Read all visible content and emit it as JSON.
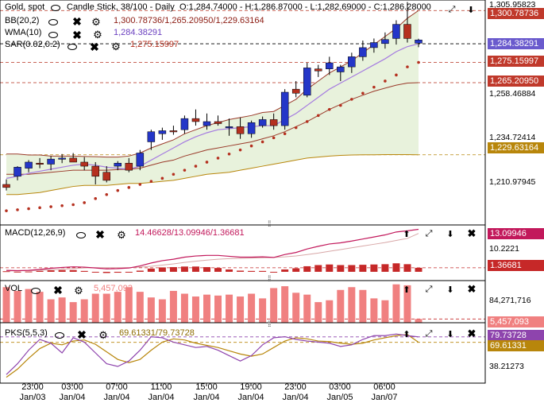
{
  "header": {
    "symbol": "Gold, spot",
    "chart_type": "Candle Stick, 38/100 - Daily",
    "ohlc": "O:1,284.74000 - H:1,286.87000 - L:1,282.69000 - C:1,286.28000"
  },
  "indicators": {
    "bb": {
      "name": "BB(20,2)",
      "values": "1,300.78736/1,265.20950/1,229.63164"
    },
    "wma": {
      "name": "WMA(10)",
      "value": "1,284.38291"
    },
    "sar": {
      "name": "SAR(0.02,0.2)",
      "value": "1,275.15997"
    },
    "macd": {
      "name": "MACD(12,26,9)",
      "values": "14.46628/13.09946/1.36681"
    },
    "vol": {
      "name": "VOL",
      "value": "5,457,093"
    },
    "pks": {
      "name": "PKS(5,5,3)",
      "values": "69.61331/79.73728"
    }
  },
  "price_axis": {
    "top": "1,305.95823",
    "ticks": [
      "1,258.46884",
      "1,234.72414",
      "1,210.97945"
    ],
    "tags": [
      {
        "text": "1,300.78736",
        "bg": "#c0392b",
        "fg": "#ffffff"
      },
      {
        "text": "1,284.38291",
        "bg": "#6a5acd",
        "fg": "#ffffff"
      },
      {
        "text": "1,275.15997",
        "bg": "#c0392b",
        "fg": "#ffffff"
      },
      {
        "text": "1,265.20950",
        "bg": "#c0392b",
        "fg": "#ffffff"
      },
      {
        "text": "1,229.63164",
        "bg": "#b8860b",
        "fg": "#ffffff"
      }
    ]
  },
  "macd_axis": {
    "tick": "10.2221",
    "tags": [
      {
        "text": "13.09946",
        "bg": "#c2185b",
        "fg": "#ffffff"
      },
      {
        "text": "1.36681",
        "bg": "#c62828",
        "fg": "#ffffff"
      }
    ]
  },
  "vol_axis": {
    "tick": "84,271,716",
    "tags": [
      {
        "text": "5,457,093",
        "bg": "#f08080",
        "fg": "#ffffff"
      }
    ]
  },
  "pks_axis": {
    "tick": "38.21273",
    "tags": [
      {
        "text": "79.73728",
        "bg": "#8e44ad",
        "fg": "#ffffff"
      },
      {
        "text": "69.61331",
        "bg": "#b8860b",
        "fg": "#ffffff"
      }
    ]
  },
  "time_axis": [
    {
      "time": "23:00",
      "date": "Jan/03"
    },
    {
      "time": "03:00",
      "date": "Jan/04"
    },
    {
      "time": "07:00",
      "date": "Jan/04"
    },
    {
      "time": "11:00",
      "date": "Jan/04"
    },
    {
      "time": "15:00",
      "date": "Jan/04"
    },
    {
      "time": "19:00",
      "date": "Jan/04"
    },
    {
      "time": "23:00",
      "date": "Jan/04"
    },
    {
      "time": "03:00",
      "date": "Jan/05"
    },
    {
      "time": "06:00",
      "date": "Jan/07"
    }
  ],
  "colors": {
    "bull": "#2436c8",
    "bear": "#b5301f",
    "bb_band": "#9a3a2a",
    "bb_fill": "#e8f2dc",
    "wma": "#a57be0",
    "sar": "#b5301f",
    "macd": "#c2185b",
    "signal": "#d8a7a7",
    "vol": "#f08080",
    "pks_k": "#8e44ad",
    "pks_d": "#b8860b"
  },
  "chart_data": {
    "type": "candlestick",
    "title": "Gold, spot",
    "y_range": [
      1195,
      1306
    ],
    "candles": [
      [
        1215.0,
        1217.5,
        1212.0,
        1213.5
      ],
      [
        1219.0,
        1224.0,
        1217.0,
        1223.5
      ],
      [
        1223.0,
        1227.0,
        1221.0,
        1226.0
      ],
      [
        1225.5,
        1228.0,
        1223.0,
        1225.0
      ],
      [
        1225.0,
        1229.0,
        1222.0,
        1227.5
      ],
      [
        1227.5,
        1230.0,
        1225.5,
        1228.0
      ],
      [
        1228.0,
        1230.5,
        1226.0,
        1226.0
      ],
      [
        1226.0,
        1228.5,
        1222.0,
        1224.0
      ],
      [
        1224.0,
        1226.0,
        1215.0,
        1219.0
      ],
      [
        1221.0,
        1224.0,
        1216.0,
        1217.0
      ],
      [
        1224.0,
        1226.5,
        1222.0,
        1225.5
      ],
      [
        1225.5,
        1228.0,
        1221.0,
        1222.0
      ],
      [
        1224.0,
        1232.0,
        1222.0,
        1230.5
      ],
      [
        1236.0,
        1242.0,
        1232.0,
        1241.0
      ],
      [
        1240.0,
        1243.0,
        1237.0,
        1241.5
      ],
      [
        1241.5,
        1244.0,
        1239.5,
        1241.0
      ],
      [
        1242.0,
        1249.0,
        1240.0,
        1247.5
      ],
      [
        1247.5,
        1252.0,
        1244.0,
        1246.0
      ],
      [
        1244.0,
        1250.0,
        1242.0,
        1246.0
      ],
      [
        1246.0,
        1249.0,
        1244.0,
        1245.0
      ],
      [
        1243.0,
        1247.5,
        1239.0,
        1243.5
      ],
      [
        1243.5,
        1248.0,
        1237.5,
        1240.0
      ],
      [
        1240.0,
        1246.5,
        1238.0,
        1245.5
      ],
      [
        1244.0,
        1248.5,
        1243.0,
        1247.0
      ],
      [
        1247.0,
        1250.0,
        1242.0,
        1244.0
      ],
      [
        1244.0,
        1262.0,
        1242.0,
        1260.5
      ],
      [
        1262.0,
        1266.0,
        1258.0,
        1260.0
      ],
      [
        1259.0,
        1275.0,
        1258.0,
        1272.5
      ],
      [
        1272.0,
        1274.0,
        1268.0,
        1271.0
      ],
      [
        1272.0,
        1278.0,
        1269.0,
        1275.0
      ],
      [
        1270.5,
        1274.0,
        1266.0,
        1273.0
      ],
      [
        1273.0,
        1280.0,
        1270.0,
        1278.0
      ],
      [
        1278.0,
        1286.0,
        1276.0,
        1282.5
      ],
      [
        1282.5,
        1287.0,
        1280.0,
        1285.0
      ],
      [
        1284.5,
        1290.0,
        1282.0,
        1286.5
      ],
      [
        1287.0,
        1296.0,
        1284.0,
        1294.0
      ],
      [
        1294.0,
        1305.0,
        1285.0,
        1287.0
      ],
      [
        1284.7,
        1286.9,
        1282.7,
        1286.3
      ]
    ],
    "bb_upper": [
      1230,
      1230,
      1229.5,
      1229.5,
      1229,
      1229,
      1229,
      1228.8,
      1228.7,
      1228.5,
      1228.5,
      1229,
      1230.5,
      1233,
      1235,
      1237,
      1240,
      1242,
      1244,
      1245.5,
      1247,
      1248,
      1249,
      1250.5,
      1251,
      1254,
      1257,
      1262,
      1266,
      1270,
      1273,
      1276,
      1280,
      1284,
      1288,
      1292,
      1297,
      1300.8
    ],
    "bb_mid": [
      1220,
      1220,
      1220,
      1220.5,
      1221,
      1221.5,
      1222,
      1222,
      1222,
      1222,
      1222.3,
      1222.5,
      1223,
      1224.5,
      1226,
      1227,
      1229,
      1230.5,
      1232,
      1233,
      1234,
      1235,
      1236,
      1237.5,
      1239,
      1241,
      1243.5,
      1246,
      1249,
      1252,
      1254.5,
      1257,
      1259,
      1261,
      1262.5,
      1264,
      1265,
      1265.2
    ],
    "bb_lower": [
      1210,
      1210,
      1210.5,
      1211,
      1212,
      1213,
      1214,
      1214.5,
      1214.5,
      1214.5,
      1215,
      1215.5,
      1215.5,
      1216,
      1216.5,
      1217,
      1218,
      1219,
      1220,
      1220.5,
      1221,
      1222,
      1223,
      1224,
      1225,
      1226,
      1227,
      1228,
      1228.5,
      1229,
      1229.3,
      1229.5,
      1229.6,
      1229.6,
      1229.7,
      1229.7,
      1229.7,
      1229.6
    ],
    "wma": [
      1218,
      1219,
      1220.5,
      1221.5,
      1222.5,
      1223.5,
      1224.5,
      1225,
      1224.5,
      1223.5,
      1223,
      1222.5,
      1224,
      1227,
      1230,
      1233,
      1236,
      1238.5,
      1240.5,
      1242,
      1242.5,
      1243,
      1243.5,
      1244,
      1244,
      1247,
      1250,
      1254,
      1258,
      1262,
      1265,
      1268,
      1271,
      1274,
      1277,
      1280.5,
      1283,
      1284.4
    ],
    "sar": [
      1202,
      1202.5,
      1203,
      1203.5,
      1204,
      1204.5,
      1205,
      1206,
      1208,
      1210,
      1212,
      1213.5,
      1215,
      1216.5,
      1218,
      1220,
      1222,
      1224,
      1226,
      1228,
      1230,
      1232,
      1234,
      1236,
      1238,
      1240,
      1243,
      1246,
      1249,
      1252,
      1254,
      1257,
      1260,
      1263,
      1266,
      1269,
      1273,
      1275.2
    ],
    "macd": [
      0.5,
      0.4,
      0.5,
      0.8,
      1.2,
      1.5,
      1.7,
      1.6,
      1.3,
      1.0,
      1.1,
      1.3,
      2.0,
      3.0,
      3.8,
      4.3,
      5.0,
      5.4,
      5.6,
      5.6,
      5.3,
      5.0,
      5.0,
      5.1,
      4.9,
      5.9,
      6.6,
      7.8,
      8.7,
      9.5,
      9.9,
      10.5,
      11.2,
      11.9,
      12.6,
      13.6,
      14.0,
      14.5
    ],
    "signal": [
      0.3,
      0.35,
      0.4,
      0.5,
      0.7,
      0.9,
      1.1,
      1.3,
      1.4,
      1.4,
      1.4,
      1.4,
      1.6,
      1.9,
      2.3,
      2.7,
      3.2,
      3.6,
      4.0,
      4.3,
      4.5,
      4.6,
      4.7,
      4.8,
      4.9,
      5.1,
      5.4,
      5.9,
      6.4,
      7.0,
      7.6,
      8.2,
      8.8,
      9.4,
      10.0,
      10.7,
      11.4,
      13.1
    ],
    "histogram": [
      0.2,
      0.05,
      0.1,
      0.3,
      0.5,
      0.6,
      0.6,
      0.3,
      -0.1,
      -0.4,
      -0.3,
      -0.1,
      0.4,
      1.1,
      1.5,
      1.6,
      1.8,
      1.8,
      1.6,
      1.3,
      0.8,
      0.4,
      0.3,
      0.3,
      0.0,
      0.8,
      1.2,
      1.9,
      2.3,
      2.5,
      2.3,
      2.3,
      2.4,
      2.5,
      2.6,
      2.9,
      2.6,
      1.37
    ],
    "macd_range": [
      -3,
      16
    ],
    "volume": [
      38,
      34,
      36,
      33,
      25,
      27,
      22,
      25,
      31,
      31,
      33,
      38,
      33,
      27,
      25,
      34,
      31,
      28,
      30,
      29,
      30,
      28,
      31,
      26,
      37,
      39,
      32,
      30,
      22,
      24,
      35,
      38,
      35,
      26,
      24,
      41,
      40,
      4
    ],
    "volume_range": [
      0,
      45
    ],
    "pks_k": [
      10,
      30,
      55,
      75,
      68,
      50,
      78,
      70,
      50,
      30,
      25,
      35,
      55,
      80,
      78,
      70,
      65,
      60,
      62,
      55,
      45,
      35,
      45,
      65,
      78,
      80,
      75,
      72,
      70,
      68,
      62,
      65,
      75,
      82,
      82,
      85,
      82,
      79.7
    ],
    "pks_d": [
      5,
      20,
      40,
      58,
      68,
      65,
      72,
      74,
      66,
      52,
      38,
      32,
      38,
      55,
      70,
      76,
      74,
      68,
      64,
      60,
      54,
      48,
      44,
      48,
      60,
      72,
      78,
      76,
      72,
      71,
      68,
      66,
      68,
      74,
      78,
      82,
      84,
      69.6
    ],
    "pks_range": [
      0,
      100
    ]
  }
}
